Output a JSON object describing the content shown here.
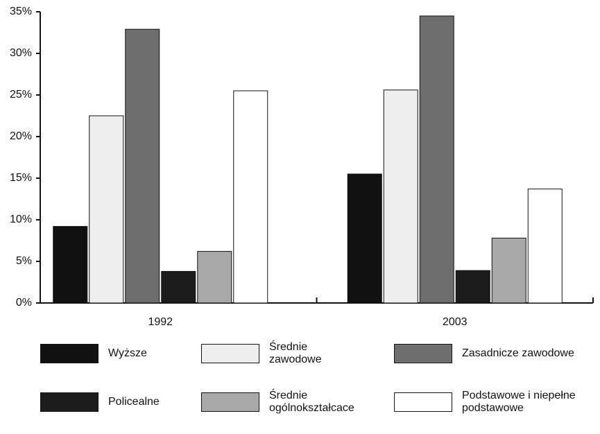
{
  "chart_data": {
    "type": "bar",
    "categories": [
      "1992",
      "2003"
    ],
    "series": [
      {
        "name": "Wyższe",
        "color": "#111111",
        "values": [
          9.2,
          15.5
        ]
      },
      {
        "name": "Średnie zawodowe",
        "color": "#eeeeee",
        "values": [
          22.5,
          25.6
        ]
      },
      {
        "name": "Zasadnicze zawodowe",
        "color": "#6e6e6e",
        "values": [
          32.9,
          34.5
        ]
      },
      {
        "name": "Policealne",
        "color": "#1c1c1c",
        "values": [
          3.8,
          3.9
        ]
      },
      {
        "name": "Średnie ogólnokształcace",
        "color": "#a8a8a8",
        "values": [
          6.2,
          7.8
        ]
      },
      {
        "name": "Podstawowe i niepełne podstawowe",
        "color": "#ffffff",
        "values": [
          25.5,
          13.7
        ]
      }
    ],
    "ylim": [
      0,
      35
    ],
    "yticks": [
      {
        "value": 0,
        "label": "0%"
      },
      {
        "value": 5,
        "label": "5%"
      },
      {
        "value": 10,
        "label": "10%"
      },
      {
        "value": 15,
        "label": "15%"
      },
      {
        "value": 20,
        "label": "20%"
      },
      {
        "value": 25,
        "label": "25%"
      },
      {
        "value": 30,
        "label": "30%"
      },
      {
        "value": 35,
        "label": "35%"
      }
    ],
    "grid": false,
    "legend": "bottom"
  }
}
